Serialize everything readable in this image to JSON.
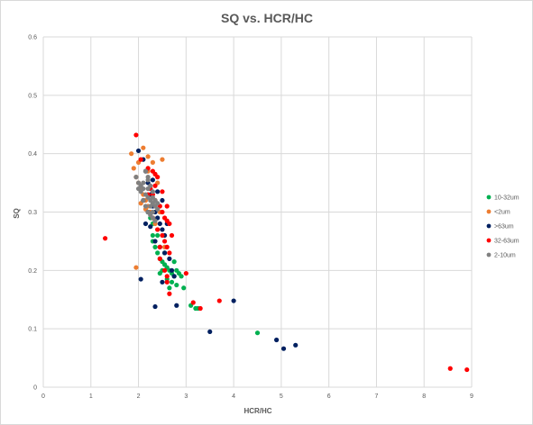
{
  "chart_data": {
    "type": "scatter",
    "title": "SQ vs. HCR/HC",
    "xlabel": "HCR/HC",
    "ylabel": "SQ",
    "xlim": [
      0,
      9
    ],
    "ylim": [
      0,
      0.6
    ],
    "x_ticks": [
      "0",
      "1",
      "2",
      "3",
      "4",
      "5",
      "6",
      "7",
      "8",
      "9"
    ],
    "y_ticks": [
      "0",
      "0.1",
      "0.2",
      "0.3",
      "0.4",
      "0.5",
      "0.6"
    ],
    "grid": true,
    "legend_position": "right",
    "series": [
      {
        "name": "10-32um",
        "color": "#00b050",
        "points": [
          [
            2.3,
            0.25
          ],
          [
            2.4,
            0.23
          ],
          [
            2.45,
            0.22
          ],
          [
            2.5,
            0.215
          ],
          [
            2.55,
            0.21
          ],
          [
            2.6,
            0.205
          ],
          [
            2.65,
            0.2
          ],
          [
            2.7,
            0.195
          ],
          [
            2.75,
            0.19
          ],
          [
            2.8,
            0.2
          ],
          [
            2.85,
            0.195
          ],
          [
            2.9,
            0.19
          ],
          [
            2.95,
            0.17
          ],
          [
            2.6,
            0.185
          ],
          [
            2.7,
            0.18
          ],
          [
            2.8,
            0.175
          ],
          [
            2.75,
            0.215
          ],
          [
            2.5,
            0.2
          ],
          [
            2.45,
            0.195
          ],
          [
            2.35,
            0.24
          ],
          [
            2.3,
            0.26
          ],
          [
            2.55,
            0.23
          ],
          [
            2.4,
            0.26
          ],
          [
            2.65,
            0.17
          ],
          [
            3.1,
            0.14
          ],
          [
            3.2,
            0.135
          ],
          [
            3.25,
            0.135
          ],
          [
            4.5,
            0.093
          ],
          [
            2.2,
            0.3
          ],
          [
            2.25,
            0.29
          ],
          [
            2.3,
            0.28
          ]
        ]
      },
      {
        "name": "<2um",
        "color": "#ed7d31",
        "points": [
          [
            1.85,
            0.4
          ],
          [
            1.9,
            0.375
          ],
          [
            1.95,
            0.36
          ],
          [
            2.0,
            0.35
          ],
          [
            2.05,
            0.34
          ],
          [
            2.1,
            0.33
          ],
          [
            2.15,
            0.32
          ],
          [
            2.2,
            0.31
          ],
          [
            2.25,
            0.3
          ],
          [
            2.3,
            0.29
          ],
          [
            2.35,
            0.28
          ],
          [
            2.4,
            0.27
          ],
          [
            2.1,
            0.41
          ],
          [
            2.2,
            0.395
          ],
          [
            2.3,
            0.385
          ],
          [
            2.5,
            0.39
          ],
          [
            2.05,
            0.315
          ],
          [
            2.15,
            0.305
          ],
          [
            2.25,
            0.34
          ],
          [
            2.35,
            0.32
          ],
          [
            2.45,
            0.3
          ],
          [
            2.55,
            0.24
          ],
          [
            1.95,
            0.205
          ],
          [
            2.4,
            0.35
          ],
          [
            2.2,
            0.37
          ],
          [
            2.0,
            0.385
          ]
        ]
      },
      {
        "name": ">63um",
        "color": "#002060",
        "points": [
          [
            2.0,
            0.405
          ],
          [
            2.1,
            0.39
          ],
          [
            2.15,
            0.37
          ],
          [
            2.2,
            0.35
          ],
          [
            2.25,
            0.33
          ],
          [
            2.3,
            0.31
          ],
          [
            2.35,
            0.3
          ],
          [
            2.4,
            0.29
          ],
          [
            2.45,
            0.28
          ],
          [
            2.5,
            0.27
          ],
          [
            2.55,
            0.26
          ],
          [
            2.1,
            0.32
          ],
          [
            2.2,
            0.3
          ],
          [
            2.25,
            0.275
          ],
          [
            2.35,
            0.25
          ],
          [
            2.45,
            0.24
          ],
          [
            2.55,
            0.23
          ],
          [
            2.4,
            0.335
          ],
          [
            2.5,
            0.32
          ],
          [
            2.3,
            0.355
          ],
          [
            2.6,
            0.28
          ],
          [
            2.65,
            0.22
          ],
          [
            2.7,
            0.2
          ],
          [
            2.75,
            0.19
          ],
          [
            2.5,
            0.18
          ],
          [
            2.05,
            0.185
          ],
          [
            2.35,
            0.138
          ],
          [
            2.8,
            0.14
          ],
          [
            3.5,
            0.095
          ],
          [
            4.0,
            0.148
          ],
          [
            4.9,
            0.081
          ],
          [
            5.05,
            0.066
          ],
          [
            5.3,
            0.072
          ],
          [
            2.15,
            0.28
          ]
        ]
      },
      {
        "name": "32-63um",
        "color": "#ff0000",
        "points": [
          [
            1.95,
            0.432
          ],
          [
            2.05,
            0.39
          ],
          [
            2.2,
            0.375
          ],
          [
            2.3,
            0.37
          ],
          [
            2.35,
            0.365
          ],
          [
            2.4,
            0.36
          ],
          [
            2.25,
            0.34
          ],
          [
            2.3,
            0.33
          ],
          [
            2.35,
            0.32
          ],
          [
            2.45,
            0.31
          ],
          [
            2.5,
            0.3
          ],
          [
            2.55,
            0.29
          ],
          [
            2.6,
            0.285
          ],
          [
            2.65,
            0.28
          ],
          [
            2.4,
            0.27
          ],
          [
            2.5,
            0.26
          ],
          [
            2.55,
            0.25
          ],
          [
            2.6,
            0.24
          ],
          [
            2.65,
            0.23
          ],
          [
            2.7,
            0.26
          ],
          [
            2.3,
            0.29
          ],
          [
            2.2,
            0.33
          ],
          [
            2.45,
            0.22
          ],
          [
            2.55,
            0.2
          ],
          [
            2.6,
            0.19
          ],
          [
            2.65,
            0.16
          ],
          [
            2.6,
            0.18
          ],
          [
            3.0,
            0.195
          ],
          [
            3.15,
            0.145
          ],
          [
            3.3,
            0.135
          ],
          [
            3.7,
            0.148
          ],
          [
            1.3,
            0.255
          ],
          [
            8.55,
            0.032
          ],
          [
            8.9,
            0.03
          ],
          [
            2.35,
            0.345
          ],
          [
            2.5,
            0.335
          ],
          [
            2.6,
            0.31
          ],
          [
            2.45,
            0.24
          ]
        ]
      },
      {
        "name": "2-10um",
        "color": "#808080",
        "points": [
          [
            1.95,
            0.36
          ],
          [
            2.0,
            0.35
          ],
          [
            2.05,
            0.345
          ],
          [
            2.1,
            0.34
          ],
          [
            2.15,
            0.33
          ],
          [
            2.2,
            0.325
          ],
          [
            2.25,
            0.32
          ],
          [
            2.3,
            0.315
          ],
          [
            2.35,
            0.31
          ],
          [
            2.4,
            0.305
          ],
          [
            2.2,
            0.3
          ],
          [
            2.25,
            0.295
          ],
          [
            2.3,
            0.29
          ],
          [
            2.15,
            0.31
          ],
          [
            2.1,
            0.32
          ],
          [
            2.05,
            0.335
          ],
          [
            2.0,
            0.34
          ],
          [
            2.2,
            0.355
          ],
          [
            2.25,
            0.345
          ],
          [
            2.3,
            0.335
          ],
          [
            2.15,
            0.37
          ],
          [
            2.2,
            0.36
          ],
          [
            2.35,
            0.32
          ],
          [
            2.4,
            0.315
          ],
          [
            2.3,
            0.3
          ],
          [
            2.25,
            0.31
          ],
          [
            2.35,
            0.285
          ],
          [
            2.1,
            0.35
          ],
          [
            2.2,
            0.34
          ],
          [
            2.3,
            0.325
          ]
        ]
      }
    ]
  }
}
